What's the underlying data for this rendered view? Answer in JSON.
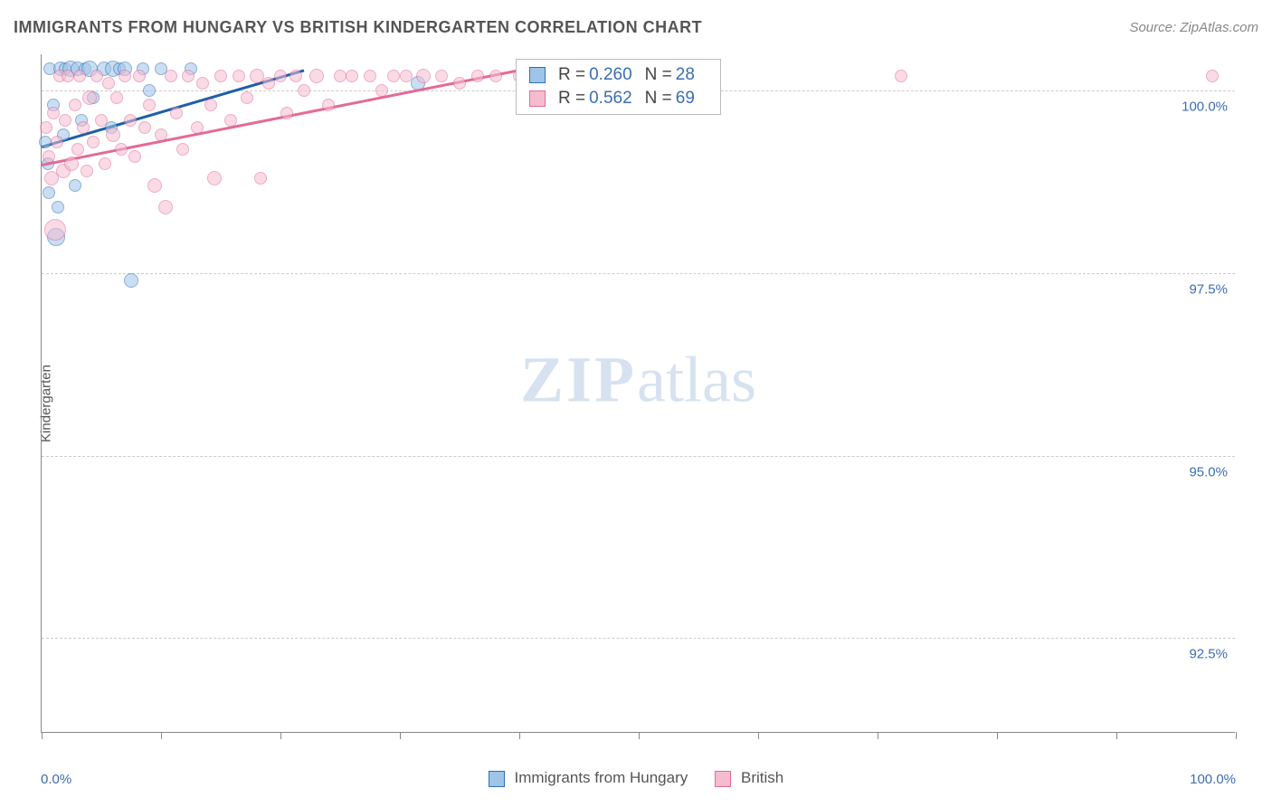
{
  "title": "IMMIGRANTS FROM HUNGARY VS BRITISH KINDERGARTEN CORRELATION CHART",
  "source_label": "Source: ZipAtlas.com",
  "y_axis_label": "Kindergarten",
  "watermark": {
    "bold": "ZIP",
    "rest": "atlas"
  },
  "chart": {
    "type": "scatter",
    "xlim": [
      0,
      100
    ],
    "ylim": [
      91.2,
      100.5
    ],
    "x_ticks": [
      0,
      10,
      20,
      30,
      40,
      50,
      60,
      70,
      80,
      90,
      100
    ],
    "x_tick_labels": {
      "0": "0.0%",
      "100": "100.0%"
    },
    "y_ticks": [
      92.5,
      95.0,
      97.5,
      100.0
    ],
    "y_tick_labels": [
      "92.5%",
      "95.0%",
      "97.5%",
      "100.0%"
    ],
    "background_color": "#ffffff",
    "grid_color": "#cccccc",
    "axis_color": "#888888",
    "tick_label_color": "#3b6db5",
    "series": [
      {
        "name": "Immigrants from Hungary",
        "fill": "#9ec4e8",
        "stroke": "#2f6fb6",
        "line_color": "#1d5fa8",
        "R": "0.260",
        "N": "28",
        "trend": {
          "x1": 0,
          "y1": 99.25,
          "x2": 22,
          "y2": 100.3
        },
        "marker_opacity": 0.55,
        "points": [
          {
            "x": 0.3,
            "y": 99.3,
            "r": 7
          },
          {
            "x": 0.5,
            "y": 99.0,
            "r": 7
          },
          {
            "x": 0.6,
            "y": 98.6,
            "r": 7
          },
          {
            "x": 0.7,
            "y": 100.3,
            "r": 7
          },
          {
            "x": 1.0,
            "y": 99.8,
            "r": 7
          },
          {
            "x": 1.2,
            "y": 98.0,
            "r": 10
          },
          {
            "x": 1.4,
            "y": 98.4,
            "r": 7
          },
          {
            "x": 1.6,
            "y": 100.3,
            "r": 8
          },
          {
            "x": 1.8,
            "y": 99.4,
            "r": 7
          },
          {
            "x": 2.0,
            "y": 100.3,
            "r": 7
          },
          {
            "x": 2.4,
            "y": 100.3,
            "r": 9
          },
          {
            "x": 2.8,
            "y": 98.7,
            "r": 7
          },
          {
            "x": 3.0,
            "y": 100.3,
            "r": 8
          },
          {
            "x": 3.3,
            "y": 99.6,
            "r": 7
          },
          {
            "x": 3.6,
            "y": 100.3,
            "r": 7
          },
          {
            "x": 4.0,
            "y": 100.3,
            "r": 9
          },
          {
            "x": 4.3,
            "y": 99.9,
            "r": 7
          },
          {
            "x": 5.2,
            "y": 100.3,
            "r": 8
          },
          {
            "x": 5.8,
            "y": 99.5,
            "r": 7
          },
          {
            "x": 6.0,
            "y": 100.3,
            "r": 9
          },
          {
            "x": 6.5,
            "y": 100.3,
            "r": 7
          },
          {
            "x": 7.0,
            "y": 100.3,
            "r": 8
          },
          {
            "x": 7.5,
            "y": 97.4,
            "r": 8
          },
          {
            "x": 8.5,
            "y": 100.3,
            "r": 7
          },
          {
            "x": 9.0,
            "y": 100.0,
            "r": 7
          },
          {
            "x": 10.0,
            "y": 100.3,
            "r": 7
          },
          {
            "x": 12.5,
            "y": 100.3,
            "r": 7
          },
          {
            "x": 31.5,
            "y": 100.1,
            "r": 8
          }
        ]
      },
      {
        "name": "British",
        "fill": "#f5bcd0",
        "stroke": "#e46a97",
        "line_color": "#e46a97",
        "R": "0.562",
        "N": "69",
        "trend": {
          "x1": 0,
          "y1": 99.0,
          "x2": 40,
          "y2": 100.3
        },
        "marker_opacity": 0.55,
        "points": [
          {
            "x": 0.4,
            "y": 99.5,
            "r": 7
          },
          {
            "x": 0.6,
            "y": 99.1,
            "r": 7
          },
          {
            "x": 0.8,
            "y": 98.8,
            "r": 8
          },
          {
            "x": 1.0,
            "y": 99.7,
            "r": 7
          },
          {
            "x": 1.1,
            "y": 98.1,
            "r": 12
          },
          {
            "x": 1.3,
            "y": 99.3,
            "r": 7
          },
          {
            "x": 1.5,
            "y": 100.2,
            "r": 7
          },
          {
            "x": 1.8,
            "y": 98.9,
            "r": 8
          },
          {
            "x": 2.0,
            "y": 99.6,
            "r": 7
          },
          {
            "x": 2.2,
            "y": 100.2,
            "r": 7
          },
          {
            "x": 2.5,
            "y": 99.0,
            "r": 8
          },
          {
            "x": 2.8,
            "y": 99.8,
            "r": 7
          },
          {
            "x": 3.0,
            "y": 99.2,
            "r": 7
          },
          {
            "x": 3.2,
            "y": 100.2,
            "r": 7
          },
          {
            "x": 3.5,
            "y": 99.5,
            "r": 7
          },
          {
            "x": 3.8,
            "y": 98.9,
            "r": 7
          },
          {
            "x": 4.0,
            "y": 99.9,
            "r": 8
          },
          {
            "x": 4.3,
            "y": 99.3,
            "r": 7
          },
          {
            "x": 4.6,
            "y": 100.2,
            "r": 7
          },
          {
            "x": 5.0,
            "y": 99.6,
            "r": 7
          },
          {
            "x": 5.3,
            "y": 99.0,
            "r": 7
          },
          {
            "x": 5.6,
            "y": 100.1,
            "r": 7
          },
          {
            "x": 6.0,
            "y": 99.4,
            "r": 8
          },
          {
            "x": 6.3,
            "y": 99.9,
            "r": 7
          },
          {
            "x": 6.7,
            "y": 99.2,
            "r": 7
          },
          {
            "x": 7.0,
            "y": 100.2,
            "r": 7
          },
          {
            "x": 7.4,
            "y": 99.6,
            "r": 7
          },
          {
            "x": 7.8,
            "y": 99.1,
            "r": 7
          },
          {
            "x": 8.2,
            "y": 100.2,
            "r": 7
          },
          {
            "x": 8.6,
            "y": 99.5,
            "r": 7
          },
          {
            "x": 9.0,
            "y": 99.8,
            "r": 7
          },
          {
            "x": 9.5,
            "y": 98.7,
            "r": 8
          },
          {
            "x": 10.0,
            "y": 99.4,
            "r": 7
          },
          {
            "x": 10.4,
            "y": 98.4,
            "r": 8
          },
          {
            "x": 10.8,
            "y": 100.2,
            "r": 7
          },
          {
            "x": 11.3,
            "y": 99.7,
            "r": 7
          },
          {
            "x": 11.8,
            "y": 99.2,
            "r": 7
          },
          {
            "x": 12.3,
            "y": 100.2,
            "r": 7
          },
          {
            "x": 13.0,
            "y": 99.5,
            "r": 7
          },
          {
            "x": 13.5,
            "y": 100.1,
            "r": 7
          },
          {
            "x": 14.2,
            "y": 99.8,
            "r": 7
          },
          {
            "x": 14.5,
            "y": 98.8,
            "r": 8
          },
          {
            "x": 15.0,
            "y": 100.2,
            "r": 7
          },
          {
            "x": 15.8,
            "y": 99.6,
            "r": 7
          },
          {
            "x": 16.5,
            "y": 100.2,
            "r": 7
          },
          {
            "x": 17.2,
            "y": 99.9,
            "r": 7
          },
          {
            "x": 18.0,
            "y": 100.2,
            "r": 8
          },
          {
            "x": 18.3,
            "y": 98.8,
            "r": 7
          },
          {
            "x": 19.0,
            "y": 100.1,
            "r": 7
          },
          {
            "x": 20.0,
            "y": 100.2,
            "r": 7
          },
          {
            "x": 20.5,
            "y": 99.7,
            "r": 7
          },
          {
            "x": 21.3,
            "y": 100.2,
            "r": 7
          },
          {
            "x": 22.0,
            "y": 100.0,
            "r": 7
          },
          {
            "x": 23.0,
            "y": 100.2,
            "r": 8
          },
          {
            "x": 24.0,
            "y": 99.8,
            "r": 7
          },
          {
            "x": 25.0,
            "y": 100.2,
            "r": 7
          },
          {
            "x": 26.0,
            "y": 100.2,
            "r": 7
          },
          {
            "x": 27.5,
            "y": 100.2,
            "r": 7
          },
          {
            "x": 28.5,
            "y": 100.0,
            "r": 7
          },
          {
            "x": 29.5,
            "y": 100.2,
            "r": 7
          },
          {
            "x": 30.5,
            "y": 100.2,
            "r": 7
          },
          {
            "x": 32.0,
            "y": 100.2,
            "r": 8
          },
          {
            "x": 33.5,
            "y": 100.2,
            "r": 7
          },
          {
            "x": 35.0,
            "y": 100.1,
            "r": 7
          },
          {
            "x": 36.5,
            "y": 100.2,
            "r": 7
          },
          {
            "x": 38.0,
            "y": 100.2,
            "r": 7
          },
          {
            "x": 40.0,
            "y": 100.2,
            "r": 7
          },
          {
            "x": 72.0,
            "y": 100.2,
            "r": 7
          },
          {
            "x": 98.0,
            "y": 100.2,
            "r": 7
          }
        ]
      }
    ]
  },
  "legend": {
    "items": [
      {
        "label": "Immigrants from Hungary",
        "fill": "#9ec4e8",
        "stroke": "#2f6fb6"
      },
      {
        "label": "British",
        "fill": "#f5bcd0",
        "stroke": "#e46a97"
      }
    ]
  },
  "stats_box": {
    "r_label": "R =",
    "n_label": "N ="
  }
}
